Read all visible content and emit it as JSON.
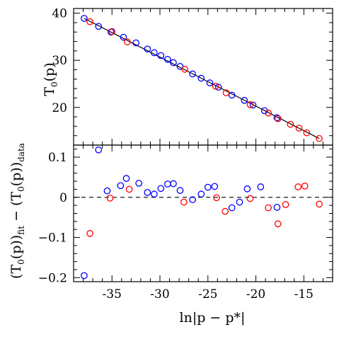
{
  "chart_data": [
    {
      "type": "scatter",
      "panel": "top",
      "ylabel": "T_0(p)",
      "ylim": [
        12,
        41
      ],
      "xlim": [
        -39,
        -12
      ],
      "yticks": [
        20,
        30,
        40
      ],
      "fit_line": {
        "x": [
          -37.9,
          -13.4
        ],
        "y": [
          38.9,
          13.4
        ]
      },
      "series": [
        {
          "color": "#0000ff",
          "x": [
            -37.9,
            -36.4,
            -35.1,
            -33.8,
            -32.5,
            -31.3,
            -30.6,
            -29.9,
            -29.2,
            -28.6,
            -27.9,
            -26.6,
            -25.7,
            -24.8,
            -23.9,
            -22.5,
            -21.2,
            -20.3,
            -19.1,
            -17.8
          ],
          "y": [
            38.9,
            37.2,
            36.0,
            34.9,
            33.7,
            32.4,
            31.6,
            31.0,
            30.2,
            29.5,
            28.7,
            27.1,
            26.2,
            25.2,
            24.3,
            22.6,
            21.5,
            20.5,
            19.3,
            17.8
          ]
        },
        {
          "color": "#ff0000",
          "x": [
            -37.3,
            -35.0,
            -33.4,
            -27.4,
            -24.2,
            -23.1,
            -20.6,
            -18.7,
            -17.7,
            -16.4,
            -15.5,
            -14.7,
            -13.4
          ],
          "y": [
            38.2,
            36.1,
            33.9,
            28.1,
            24.5,
            23.1,
            20.6,
            18.8,
            17.6,
            16.4,
            15.6,
            14.6,
            13.4
          ]
        }
      ]
    },
    {
      "type": "scatter",
      "panel": "bottom",
      "xlabel": "ln|p − p*|",
      "ylabel": "(T_0(p))_fit − (T_0(p))_data",
      "xlim": [
        -39,
        -12
      ],
      "ylim": [
        -0.21,
        0.13
      ],
      "xticks": [
        -35,
        -30,
        -25,
        -20,
        -15
      ],
      "yticks": [
        -0.2,
        -0.1,
        0,
        0.1
      ],
      "series": [
        {
          "color": "#0000ff",
          "x": [
            -37.9,
            -36.4,
            -35.5,
            -34.1,
            -33.5,
            -32.2,
            -31.3,
            -30.6,
            -29.9,
            -29.2,
            -28.6,
            -27.9,
            -26.6,
            -25.7,
            -25.0,
            -24.3,
            -22.5,
            -21.7,
            -20.9,
            -19.5,
            -17.8
          ],
          "y": [
            -0.195,
            0.118,
            0.016,
            0.029,
            0.047,
            0.035,
            0.012,
            0.008,
            0.022,
            0.033,
            0.034,
            0.017,
            -0.006,
            0.008,
            0.025,
            0.027,
            -0.026,
            -0.012,
            0.021,
            0.026,
            -0.025
          ]
        },
        {
          "color": "#ff0000",
          "x": [
            -37.3,
            -35.2,
            -33.2,
            -27.5,
            -24.1,
            -23.2,
            -20.6,
            -18.7,
            -17.7,
            -16.9,
            -15.6,
            -14.9,
            -13.4
          ],
          "y": [
            -0.09,
            -0.002,
            0.02,
            -0.012,
            -0.001,
            -0.035,
            -0.003,
            -0.026,
            -0.066,
            -0.018,
            0.026,
            0.028,
            -0.017
          ]
        }
      ]
    }
  ]
}
